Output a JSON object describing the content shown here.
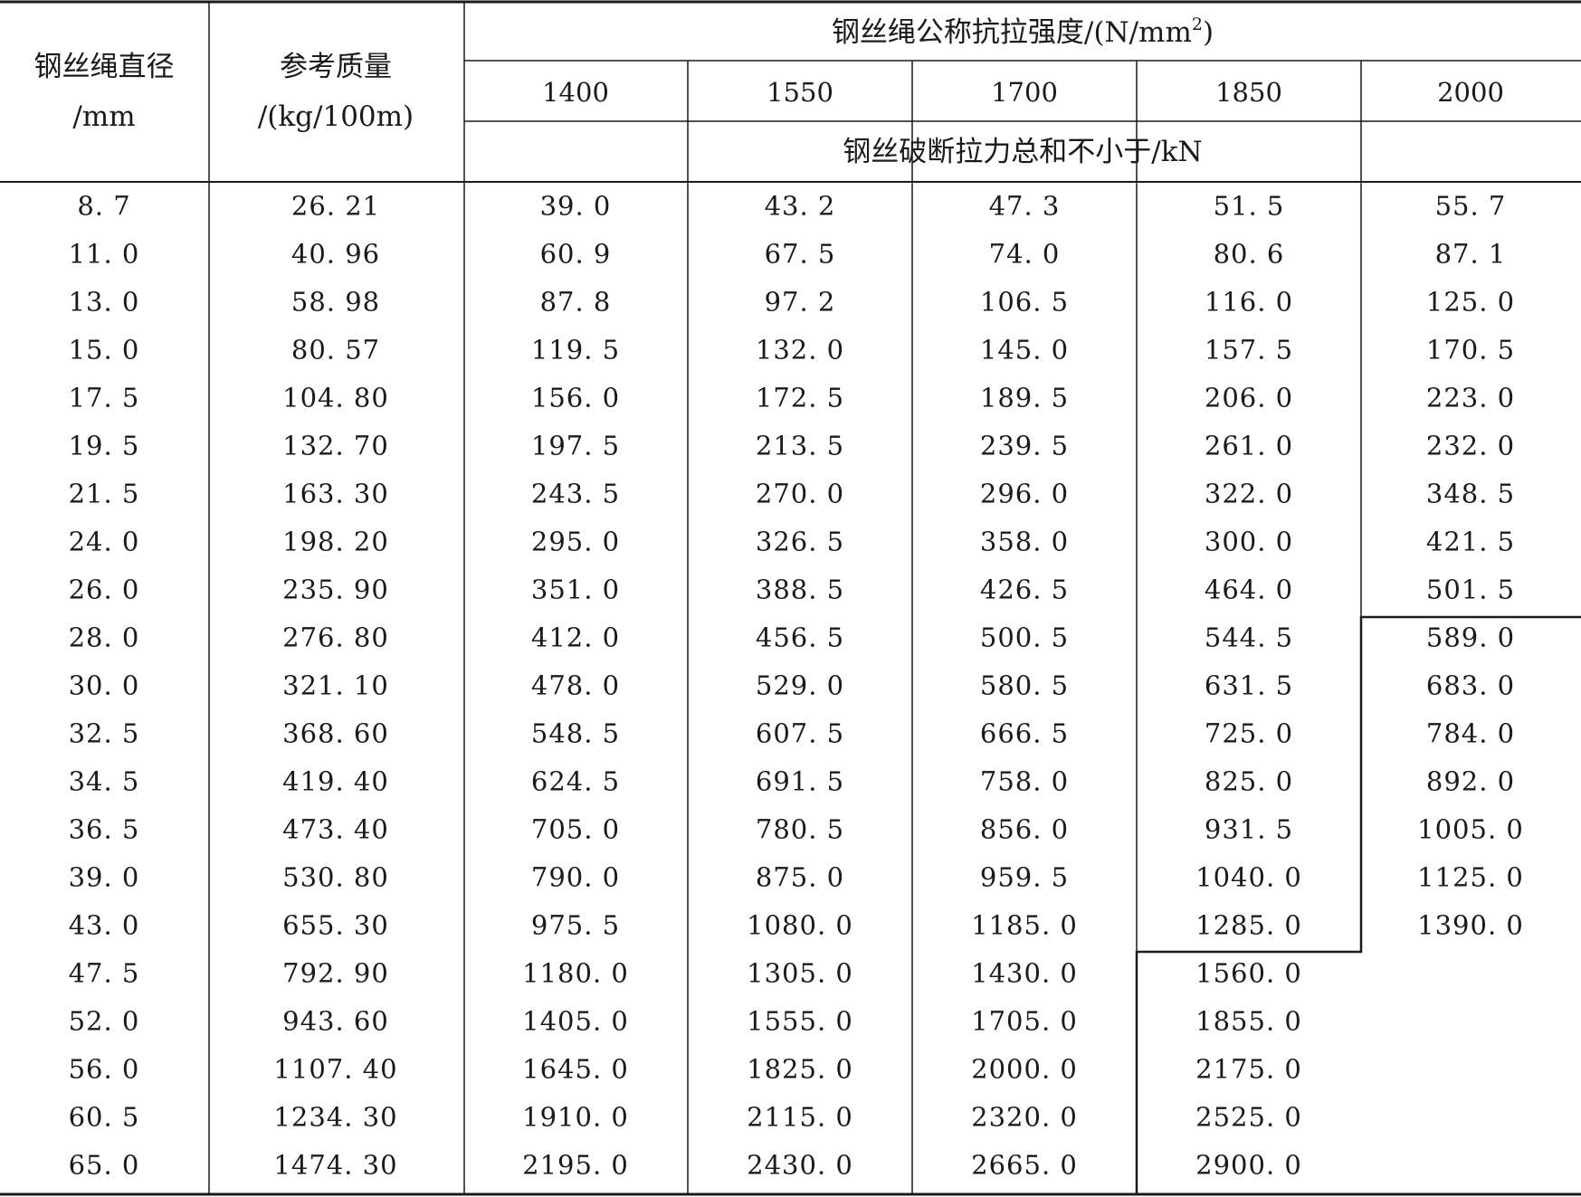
{
  "header": {
    "diameter_label": "钢丝绳直径",
    "diameter_unit": "/mm",
    "mass_label": "参考质量",
    "mass_unit": "/(kg/100m)",
    "strength_label_prefix": "钢丝绳公称抗拉强度/(N/mm",
    "strength_label_sup": "2",
    "strength_label_suffix": ")",
    "grades": [
      "1400",
      "1550",
      "1700",
      "1850",
      "2000"
    ],
    "breaking_force_label": "钢丝破断拉力总和不小于/kN"
  },
  "rows": [
    [
      "8. 7",
      "26. 21",
      "39. 0",
      "43. 2",
      "47. 3",
      "51. 5",
      "55. 7"
    ],
    [
      "11. 0",
      "40. 96",
      "60. 9",
      "67. 5",
      "74. 0",
      "80. 6",
      "87. 1"
    ],
    [
      "13. 0",
      "58. 98",
      "87. 8",
      "97. 2",
      "106. 5",
      "116. 0",
      "125. 0"
    ],
    [
      "15. 0",
      "80. 57",
      "119. 5",
      "132. 0",
      "145. 0",
      "157. 5",
      "170. 5"
    ],
    [
      "17. 5",
      "104. 80",
      "156. 0",
      "172. 5",
      "189. 5",
      "206. 0",
      "223. 0"
    ],
    [
      "19. 5",
      "132. 70",
      "197. 5",
      "213. 5",
      "239. 5",
      "261. 0",
      "232. 0"
    ],
    [
      "21. 5",
      "163. 30",
      "243. 5",
      "270. 0",
      "296. 0",
      "322. 0",
      "348. 5"
    ],
    [
      "24. 0",
      "198. 20",
      "295. 0",
      "326. 5",
      "358. 0",
      "300. 0",
      "421. 5"
    ],
    [
      "26. 0",
      "235. 90",
      "351. 0",
      "388. 5",
      "426. 5",
      "464. 0",
      "501. 5"
    ],
    [
      "28. 0",
      "276. 80",
      "412. 0",
      "456. 5",
      "500. 5",
      "544. 5",
      "589. 0"
    ],
    [
      "30. 0",
      "321. 10",
      "478. 0",
      "529. 0",
      "580. 5",
      "631. 5",
      "683. 0"
    ],
    [
      "32. 5",
      "368. 60",
      "548. 5",
      "607. 5",
      "666. 5",
      "725. 0",
      "784. 0"
    ],
    [
      "34. 5",
      "419. 40",
      "624. 5",
      "691. 5",
      "758. 0",
      "825. 0",
      "892. 0"
    ],
    [
      "36. 5",
      "473. 40",
      "705. 0",
      "780. 5",
      "856. 0",
      "931. 5",
      "1005. 0"
    ],
    [
      "39. 0",
      "530. 80",
      "790. 0",
      "875. 0",
      "959. 5",
      "1040. 0",
      "1125. 0"
    ],
    [
      "43. 0",
      "655. 30",
      "975. 5",
      "1080. 0",
      "1185. 0",
      "1285. 0",
      "1390. 0"
    ],
    [
      "47. 5",
      "792. 90",
      "1180. 0",
      "1305. 0",
      "1430. 0",
      "1560. 0",
      ""
    ],
    [
      "52. 0",
      "943. 60",
      "1405. 0",
      "1555. 0",
      "1705. 0",
      "1855. 0",
      ""
    ],
    [
      "56. 0",
      "1107. 40",
      "1645. 0",
      "1825. 0",
      "2000. 0",
      "2175. 0",
      ""
    ],
    [
      "60. 5",
      "1234. 30",
      "1910. 0",
      "2115. 0",
      "2320. 0",
      "2525. 0",
      ""
    ],
    [
      "65. 0",
      "1474. 30",
      "2195. 0",
      "2430. 0",
      "2665. 0",
      "2900. 0",
      ""
    ]
  ]
}
